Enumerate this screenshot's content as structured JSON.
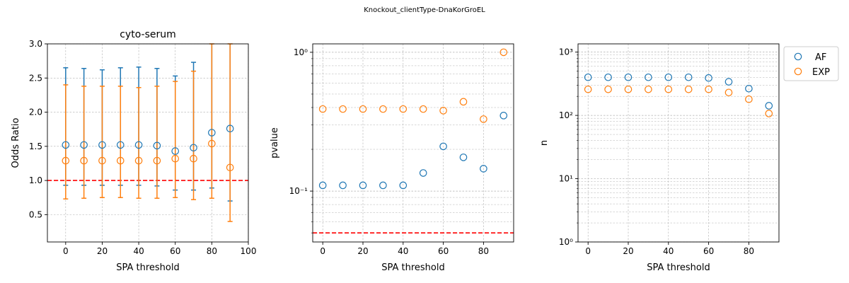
{
  "suptitle": "Knockout_clientType-DnaKorGroEL",
  "colors": {
    "AF": "#1f77b4",
    "EXP": "#ff7f0e",
    "ref": "#ff0000",
    "grid": "#b0b0b0"
  },
  "chart_data": [
    {
      "type": "scatter",
      "title": "cyto-serum",
      "xlabel": "SPA threshold",
      "ylabel": "Odds Ratio",
      "xlim": [
        -10,
        100
      ],
      "ylim": [
        0.1,
        3.0
      ],
      "xticks": [
        "0",
        "20",
        "40",
        "60",
        "80",
        "100"
      ],
      "yticks": [
        "0.5",
        "1.0",
        "1.5",
        "2.0",
        "2.5",
        "3.0"
      ],
      "grid": true,
      "reference_line": {
        "y": 1.0,
        "style": "dashed",
        "color": "red"
      },
      "series": [
        {
          "key": "AF",
          "x": [
            0,
            10,
            20,
            30,
            40,
            50,
            60,
            70,
            80,
            90
          ],
          "y": [
            1.52,
            1.52,
            1.52,
            1.52,
            1.52,
            1.51,
            1.43,
            1.48,
            1.7,
            1.76
          ],
          "err_low": [
            0.93,
            0.93,
            0.93,
            0.93,
            0.93,
            0.92,
            0.86,
            0.86,
            0.89,
            0.7
          ],
          "err_high": [
            2.65,
            2.64,
            2.62,
            2.65,
            2.66,
            2.64,
            2.53,
            2.73,
            null,
            null
          ]
        },
        {
          "key": "EXP",
          "x": [
            0,
            10,
            20,
            30,
            40,
            50,
            60,
            70,
            80,
            90
          ],
          "y": [
            1.29,
            1.29,
            1.29,
            1.29,
            1.29,
            1.29,
            1.32,
            1.32,
            1.54,
            1.19
          ],
          "err_low": [
            0.73,
            0.74,
            0.75,
            0.75,
            0.74,
            0.74,
            0.75,
            0.72,
            0.74,
            0.4
          ],
          "err_high": [
            2.4,
            2.38,
            2.38,
            2.38,
            2.36,
            2.38,
            2.45,
            2.6,
            3.0,
            3.0
          ]
        }
      ]
    },
    {
      "type": "scatter",
      "title": "",
      "xlabel": "SPA threshold",
      "ylabel": "pvalue",
      "xlim": [
        -5,
        95
      ],
      "ylim": [
        0.043,
        1.15
      ],
      "yscale": "log",
      "xticks": [
        "0",
        "20",
        "40",
        "60",
        "80"
      ],
      "yticks": [
        "10⁻¹",
        "10⁰"
      ],
      "grid": true,
      "reference_line": {
        "y": 0.05,
        "style": "dashed",
        "color": "red"
      },
      "series": [
        {
          "key": "AF",
          "x": [
            0,
            10,
            20,
            30,
            40,
            50,
            60,
            70,
            80,
            90
          ],
          "y": [
            0.11,
            0.11,
            0.11,
            0.11,
            0.11,
            0.135,
            0.21,
            0.175,
            0.145,
            0.35
          ]
        },
        {
          "key": "EXP",
          "x": [
            0,
            10,
            20,
            30,
            40,
            50,
            60,
            70,
            80,
            90
          ],
          "y": [
            0.39,
            0.39,
            0.39,
            0.39,
            0.39,
            0.39,
            0.38,
            0.44,
            0.33,
            1.0
          ]
        }
      ]
    },
    {
      "type": "scatter",
      "title": "",
      "xlabel": "SPA threshold",
      "ylabel": "n",
      "xlim": [
        -5,
        95
      ],
      "ylim": [
        1,
        1350
      ],
      "yscale": "log",
      "xticks": [
        "0",
        "20",
        "40",
        "60",
        "80"
      ],
      "yticks": [
        "10⁰",
        "10¹",
        "10²",
        "10³"
      ],
      "grid": true,
      "legend": {
        "position": "upper-right-outside",
        "entries": [
          "AF",
          "EXP"
        ]
      },
      "series": [
        {
          "key": "AF",
          "x": [
            0,
            10,
            20,
            30,
            40,
            50,
            60,
            70,
            80,
            90
          ],
          "y": [
            400,
            400,
            400,
            400,
            400,
            400,
            390,
            340,
            265,
            142
          ]
        },
        {
          "key": "EXP",
          "x": [
            0,
            10,
            20,
            30,
            40,
            50,
            60,
            70,
            80,
            90
          ],
          "y": [
            258,
            258,
            258,
            258,
            258,
            258,
            258,
            230,
            180,
            107
          ]
        }
      ]
    }
  ]
}
